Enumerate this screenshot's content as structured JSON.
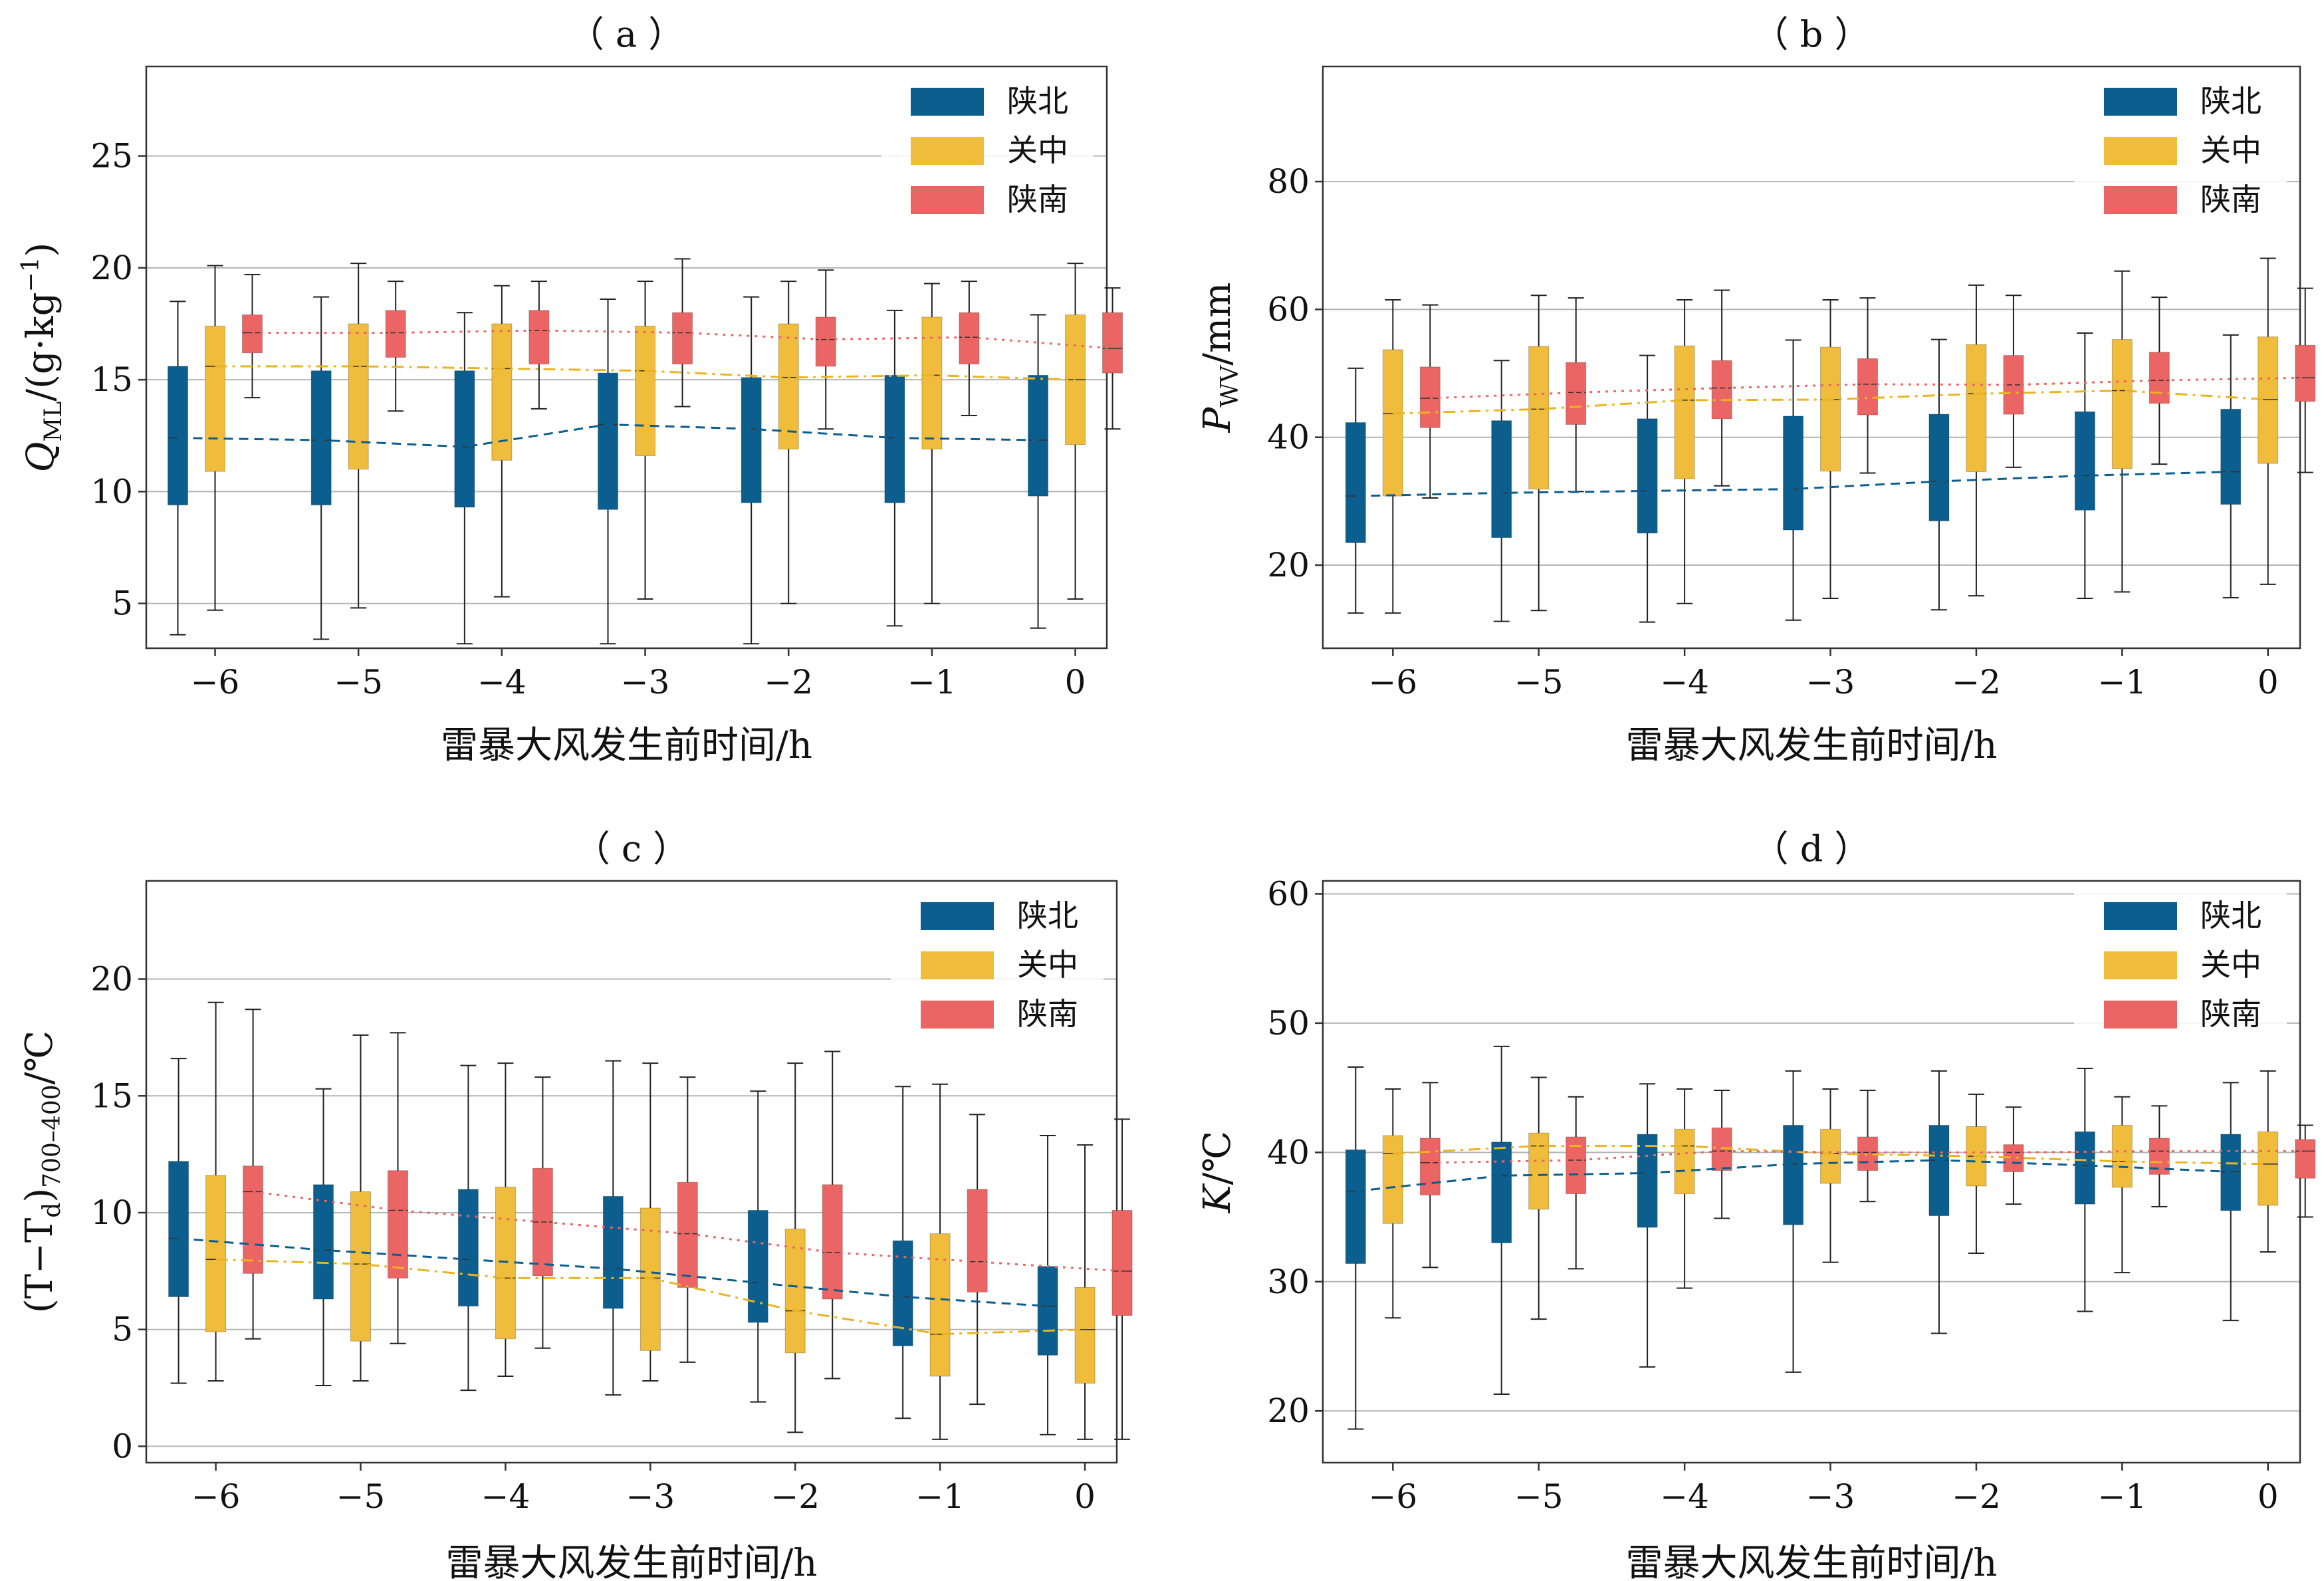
{
  "chart_data": [
    {
      "type": "box",
      "title": "（ a ）",
      "xlabel": "雷暴大风发生前时间/h",
      "ylabel_parts": [
        "Q",
        "ML",
        "/(g·kg",
        "−1",
        ")"
      ],
      "ylim": [
        3,
        29
      ],
      "yticks": [
        5,
        10,
        15,
        20,
        25
      ],
      "categories": [
        "−6",
        "−5",
        "−4",
        "−3",
        "−2",
        "−1",
        "0"
      ],
      "legend_position": "top-right",
      "grid": "horizontal",
      "series": [
        {
          "name": "陕北",
          "color": "#0b5e8e",
          "line_style": "dashed",
          "boxes": [
            {
              "whisker_low": 3.6,
              "q1": 9.4,
              "median": 12.4,
              "q3": 15.6,
              "whisker_high": 18.5
            },
            {
              "whisker_low": 3.4,
              "q1": 9.4,
              "median": 12.3,
              "q3": 15.4,
              "whisker_high": 18.7
            },
            {
              "whisker_low": 3.2,
              "q1": 9.3,
              "median": 12.0,
              "q3": 15.4,
              "whisker_high": 18.0
            },
            {
              "whisker_low": 3.2,
              "q1": 9.2,
              "median": 13.0,
              "q3": 15.3,
              "whisker_high": 18.6
            },
            {
              "whisker_low": 3.2,
              "q1": 9.5,
              "median": 12.8,
              "q3": 15.1,
              "whisker_high": 18.7
            },
            {
              "whisker_low": 4.0,
              "q1": 9.5,
              "median": 12.4,
              "q3": 15.2,
              "whisker_high": 18.1
            },
            {
              "whisker_low": 3.9,
              "q1": 9.8,
              "median": 12.3,
              "q3": 15.2,
              "whisker_high": 17.9
            }
          ]
        },
        {
          "name": "关中",
          "color": "#f0bc3b",
          "line_style": "dashdot",
          "boxes": [
            {
              "whisker_low": 4.7,
              "q1": 10.9,
              "median": 15.6,
              "q3": 17.4,
              "whisker_high": 20.1
            },
            {
              "whisker_low": 4.8,
              "q1": 11.0,
              "median": 15.6,
              "q3": 17.5,
              "whisker_high": 20.2
            },
            {
              "whisker_low": 5.3,
              "q1": 11.4,
              "median": 15.5,
              "q3": 17.5,
              "whisker_high": 19.2
            },
            {
              "whisker_low": 5.2,
              "q1": 11.6,
              "median": 15.4,
              "q3": 17.4,
              "whisker_high": 19.4
            },
            {
              "whisker_low": 5.0,
              "q1": 11.9,
              "median": 15.1,
              "q3": 17.5,
              "whisker_high": 19.4
            },
            {
              "whisker_low": 5.0,
              "q1": 11.9,
              "median": 15.2,
              "q3": 17.8,
              "whisker_high": 19.3
            },
            {
              "whisker_low": 5.2,
              "q1": 12.1,
              "median": 15.0,
              "q3": 17.9,
              "whisker_high": 20.2
            }
          ]
        },
        {
          "name": "陕南",
          "color": "#ec6565",
          "line_style": "dotted",
          "boxes": [
            {
              "whisker_low": 14.2,
              "q1": 16.2,
              "median": 17.1,
              "q3": 17.9,
              "whisker_high": 19.7
            },
            {
              "whisker_low": 13.6,
              "q1": 16.0,
              "median": 17.1,
              "q3": 18.1,
              "whisker_high": 19.4
            },
            {
              "whisker_low": 13.7,
              "q1": 15.7,
              "median": 17.2,
              "q3": 18.1,
              "whisker_high": 19.4
            },
            {
              "whisker_low": 13.8,
              "q1": 15.7,
              "median": 17.1,
              "q3": 18.0,
              "whisker_high": 20.4
            },
            {
              "whisker_low": 12.8,
              "q1": 15.6,
              "median": 16.8,
              "q3": 17.8,
              "whisker_high": 19.9
            },
            {
              "whisker_low": 13.4,
              "q1": 15.7,
              "median": 16.9,
              "q3": 18.0,
              "whisker_high": 19.4
            },
            {
              "whisker_low": 12.8,
              "q1": 15.3,
              "median": 16.4,
              "q3": 18.0,
              "whisker_high": 19.1
            }
          ]
        }
      ]
    },
    {
      "type": "box",
      "title": "（ b ）",
      "xlabel": "雷暴大风发生前时间/h",
      "ylabel_parts": [
        "P",
        "WV",
        "/mm"
      ],
      "ylim": [
        7,
        98
      ],
      "yticks": [
        20,
        40,
        60,
        80
      ],
      "categories": [
        "−6",
        "−5",
        "−4",
        "−3",
        "−2",
        "−1",
        "0"
      ],
      "legend_position": "top-right",
      "grid": "horizontal",
      "series": [
        {
          "name": "陕北",
          "color": "#0b5e8e",
          "line_style": "dashed",
          "boxes": [
            {
              "whisker_low": 12.5,
              "q1": 23.5,
              "median": 30.8,
              "q3": 42.3,
              "whisker_high": 50.8
            },
            {
              "whisker_low": 11.2,
              "q1": 24.3,
              "median": 31.3,
              "q3": 42.6,
              "whisker_high": 52.0
            },
            {
              "whisker_low": 11.1,
              "q1": 25.0,
              "median": 31.6,
              "q3": 42.9,
              "whisker_high": 52.8
            },
            {
              "whisker_low": 11.4,
              "q1": 25.5,
              "median": 31.9,
              "q3": 43.3,
              "whisker_high": 55.2
            },
            {
              "whisker_low": 13.0,
              "q1": 26.9,
              "median": 33.1,
              "q3": 43.6,
              "whisker_high": 55.3
            },
            {
              "whisker_low": 14.8,
              "q1": 28.6,
              "median": 34.0,
              "q3": 44.0,
              "whisker_high": 56.3
            },
            {
              "whisker_low": 14.9,
              "q1": 29.5,
              "median": 34.6,
              "q3": 44.4,
              "whisker_high": 56.0
            }
          ]
        },
        {
          "name": "关中",
          "color": "#f0bc3b",
          "line_style": "dashdot",
          "boxes": [
            {
              "whisker_low": 12.5,
              "q1": 30.8,
              "median": 43.7,
              "q3": 53.7,
              "whisker_high": 61.5
            },
            {
              "whisker_low": 12.9,
              "q1": 31.9,
              "median": 44.4,
              "q3": 54.2,
              "whisker_high": 62.2
            },
            {
              "whisker_low": 14.0,
              "q1": 33.5,
              "median": 45.8,
              "q3": 54.3,
              "whisker_high": 61.5
            },
            {
              "whisker_low": 14.8,
              "q1": 34.7,
              "median": 45.9,
              "q3": 54.1,
              "whisker_high": 61.5
            },
            {
              "whisker_low": 15.2,
              "q1": 34.6,
              "median": 46.8,
              "q3": 54.5,
              "whisker_high": 63.8
            },
            {
              "whisker_low": 15.8,
              "q1": 35.1,
              "median": 47.3,
              "q3": 55.3,
              "whisker_high": 66.0
            },
            {
              "whisker_low": 17.0,
              "q1": 35.9,
              "median": 45.9,
              "q3": 55.7,
              "whisker_high": 68.0
            }
          ]
        },
        {
          "name": "陕南",
          "color": "#ec6565",
          "line_style": "dotted",
          "boxes": [
            {
              "whisker_low": 30.5,
              "q1": 41.5,
              "median": 46.1,
              "q3": 51.0,
              "whisker_high": 60.7
            },
            {
              "whisker_low": 31.5,
              "q1": 42.0,
              "median": 47.0,
              "q3": 51.7,
              "whisker_high": 61.8
            },
            {
              "whisker_low": 32.4,
              "q1": 42.9,
              "median": 47.7,
              "q3": 52.0,
              "whisker_high": 63.0
            },
            {
              "whisker_low": 34.4,
              "q1": 43.5,
              "median": 48.3,
              "q3": 52.3,
              "whisker_high": 61.8
            },
            {
              "whisker_low": 35.3,
              "q1": 43.6,
              "median": 48.2,
              "q3": 52.8,
              "whisker_high": 62.2
            },
            {
              "whisker_low": 35.8,
              "q1": 45.3,
              "median": 48.9,
              "q3": 53.3,
              "whisker_high": 61.9
            },
            {
              "whisker_low": 34.5,
              "q1": 45.6,
              "median": 49.3,
              "q3": 54.4,
              "whisker_high": 63.3
            }
          ]
        }
      ]
    },
    {
      "type": "box",
      "title": "（ c ）",
      "xlabel": "雷暴大风发生前时间/h",
      "ylabel_parts": [
        "(T−T",
        "d",
        ")",
        "700–400",
        "/℃"
      ],
      "ylim": [
        -0.7,
        24.2
      ],
      "yticks": [
        0,
        5,
        10,
        15,
        20
      ],
      "categories": [
        "−6",
        "−5",
        "−4",
        "−3",
        "−2",
        "−1",
        "0"
      ],
      "legend_position": "top-right",
      "grid": "horizontal",
      "series": [
        {
          "name": "陕北",
          "color": "#0b5e8e",
          "line_style": "dashed",
          "boxes": [
            {
              "whisker_low": 2.7,
              "q1": 6.4,
              "median": 8.9,
              "q3": 12.2,
              "whisker_high": 16.6
            },
            {
              "whisker_low": 2.6,
              "q1": 6.3,
              "median": 8.4,
              "q3": 11.2,
              "whisker_high": 15.3
            },
            {
              "whisker_low": 2.4,
              "q1": 6.0,
              "median": 8.0,
              "q3": 11.0,
              "whisker_high": 16.3
            },
            {
              "whisker_low": 2.2,
              "q1": 5.9,
              "median": 7.6,
              "q3": 10.7,
              "whisker_high": 16.5
            },
            {
              "whisker_low": 1.9,
              "q1": 5.3,
              "median": 7.0,
              "q3": 10.1,
              "whisker_high": 15.2
            },
            {
              "whisker_low": 1.2,
              "q1": 4.3,
              "median": 6.4,
              "q3": 8.8,
              "whisker_high": 15.4
            },
            {
              "whisker_low": 0.5,
              "q1": 3.9,
              "median": 6.0,
              "q3": 7.7,
              "whisker_high": 13.3
            }
          ]
        },
        {
          "name": "关中",
          "color": "#f0bc3b",
          "line_style": "dashdot",
          "boxes": [
            {
              "whisker_low": 2.8,
              "q1": 4.9,
              "median": 8.0,
              "q3": 11.6,
              "whisker_high": 19.0
            },
            {
              "whisker_low": 2.8,
              "q1": 4.5,
              "median": 7.8,
              "q3": 10.9,
              "whisker_high": 17.6
            },
            {
              "whisker_low": 3.0,
              "q1": 4.6,
              "median": 7.2,
              "q3": 11.1,
              "whisker_high": 16.4
            },
            {
              "whisker_low": 2.8,
              "q1": 4.1,
              "median": 7.2,
              "q3": 10.2,
              "whisker_high": 16.4
            },
            {
              "whisker_low": 0.6,
              "q1": 4.0,
              "median": 5.8,
              "q3": 9.3,
              "whisker_high": 16.4
            },
            {
              "whisker_low": 0.3,
              "q1": 3.0,
              "median": 4.8,
              "q3": 9.1,
              "whisker_high": 15.5
            },
            {
              "whisker_low": 0.3,
              "q1": 2.7,
              "median": 5.0,
              "q3": 6.8,
              "whisker_high": 12.9
            }
          ]
        },
        {
          "name": "陕南",
          "color": "#ec6565",
          "line_style": "dotted",
          "boxes": [
            {
              "whisker_low": 4.6,
              "q1": 7.4,
              "median": 10.9,
              "q3": 12.0,
              "whisker_high": 18.7
            },
            {
              "whisker_low": 4.4,
              "q1": 7.2,
              "median": 10.1,
              "q3": 11.8,
              "whisker_high": 17.7
            },
            {
              "whisker_low": 4.2,
              "q1": 7.3,
              "median": 9.6,
              "q3": 11.9,
              "whisker_high": 15.8
            },
            {
              "whisker_low": 3.6,
              "q1": 6.8,
              "median": 9.1,
              "q3": 11.3,
              "whisker_high": 15.8
            },
            {
              "whisker_low": 2.9,
              "q1": 6.3,
              "median": 8.3,
              "q3": 11.2,
              "whisker_high": 16.9
            },
            {
              "whisker_low": 1.8,
              "q1": 6.6,
              "median": 7.9,
              "q3": 11.0,
              "whisker_high": 14.2
            },
            {
              "whisker_low": 0.3,
              "q1": 5.6,
              "median": 7.5,
              "q3": 10.1,
              "whisker_high": 14.0
            }
          ]
        }
      ]
    },
    {
      "type": "box",
      "title": "（ d ）",
      "xlabel": "雷暴大风发生前时间/h",
      "ylabel_parts": [
        "K",
        "/℃"
      ],
      "ylim": [
        16,
        61
      ],
      "yticks": [
        20,
        30,
        40,
        50,
        60
      ],
      "categories": [
        "−6",
        "−5",
        "−4",
        "−3",
        "−2",
        "−1",
        "0"
      ],
      "legend_position": "top-right",
      "grid": "horizontal",
      "series": [
        {
          "name": "陕北",
          "color": "#0b5e8e",
          "line_style": "dashed",
          "boxes": [
            {
              "whisker_low": 18.6,
              "q1": 31.4,
              "median": 37.0,
              "q3": 40.2,
              "whisker_high": 46.6
            },
            {
              "whisker_low": 21.3,
              "q1": 33.0,
              "median": 38.2,
              "q3": 40.8,
              "whisker_high": 48.2
            },
            {
              "whisker_low": 23.4,
              "q1": 34.2,
              "median": 38.4,
              "q3": 41.4,
              "whisker_high": 45.3
            },
            {
              "whisker_low": 23.0,
              "q1": 34.4,
              "median": 39.1,
              "q3": 42.1,
              "whisker_high": 46.3
            },
            {
              "whisker_low": 26.0,
              "q1": 35.1,
              "median": 39.4,
              "q3": 42.1,
              "whisker_high": 46.3
            },
            {
              "whisker_low": 27.7,
              "q1": 36.0,
              "median": 39.0,
              "q3": 41.6,
              "whisker_high": 46.5
            },
            {
              "whisker_low": 27.0,
              "q1": 35.5,
              "median": 38.5,
              "q3": 41.4,
              "whisker_high": 45.4
            }
          ]
        },
        {
          "name": "关中",
          "color": "#f0bc3b",
          "line_style": "dashdot",
          "boxes": [
            {
              "whisker_low": 27.2,
              "q1": 34.5,
              "median": 39.9,
              "q3": 41.3,
              "whisker_high": 44.9
            },
            {
              "whisker_low": 27.1,
              "q1": 35.6,
              "median": 40.5,
              "q3": 41.5,
              "whisker_high": 45.8
            },
            {
              "whisker_low": 29.5,
              "q1": 36.8,
              "median": 40.5,
              "q3": 41.8,
              "whisker_high": 44.9
            },
            {
              "whisker_low": 31.5,
              "q1": 37.6,
              "median": 39.9,
              "q3": 41.8,
              "whisker_high": 44.9
            },
            {
              "whisker_low": 32.2,
              "q1": 37.4,
              "median": 39.7,
              "q3": 42.0,
              "whisker_high": 44.5
            },
            {
              "whisker_low": 30.7,
              "q1": 37.3,
              "median": 39.3,
              "q3": 42.1,
              "whisker_high": 44.3
            },
            {
              "whisker_low": 32.3,
              "q1": 35.9,
              "median": 39.1,
              "q3": 41.6,
              "whisker_high": 46.3
            }
          ]
        },
        {
          "name": "陕南",
          "color": "#ec6565",
          "line_style": "dotted",
          "boxes": [
            {
              "whisker_low": 31.1,
              "q1": 36.7,
              "median": 39.2,
              "q3": 41.1,
              "whisker_high": 45.4
            },
            {
              "whisker_low": 31.0,
              "q1": 36.8,
              "median": 39.4,
              "q3": 41.2,
              "whisker_high": 44.3
            },
            {
              "whisker_low": 34.9,
              "q1": 38.6,
              "median": 40.1,
              "q3": 41.9,
              "whisker_high": 44.8
            },
            {
              "whisker_low": 36.2,
              "q1": 38.6,
              "median": 40.0,
              "q3": 41.2,
              "whisker_high": 44.8
            },
            {
              "whisker_low": 36.0,
              "q1": 38.5,
              "median": 40.0,
              "q3": 40.6,
              "whisker_high": 43.5
            },
            {
              "whisker_low": 35.8,
              "q1": 38.3,
              "median": 40.1,
              "q3": 41.1,
              "whisker_high": 43.6
            },
            {
              "whisker_low": 35.0,
              "q1": 38.0,
              "median": 40.1,
              "q3": 41.0,
              "whisker_high": 42.1
            }
          ]
        }
      ]
    }
  ]
}
